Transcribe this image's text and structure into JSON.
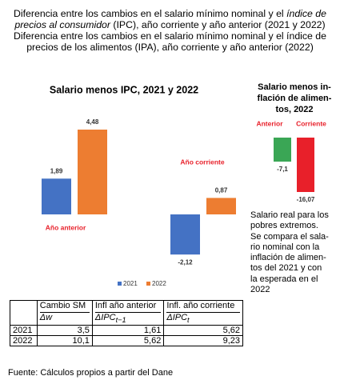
{
  "header": {
    "title_parts": [
      "Diferencia entre los cambios en el salario mínimo nominal y el ",
      "índice de precios al consumidor",
      " (IPC), año corriente y año anterior (2021 y 2022)"
    ],
    "subtitle": "Diferencia entre los cambios en el salario mínimo nominal y  el índice de precios de los alimentos (IPA), año corriente y año anterior (2022)"
  },
  "chart_data": [
    {
      "type": "bar",
      "title": "Salario menos IPC, 2021 y 2022",
      "categories": [
        "Año anterior",
        "Año corriente"
      ],
      "series": [
        {
          "name": "2021",
          "color": "#4472c4",
          "values": [
            1.89,
            -2.12
          ],
          "value_labels": [
            "1,89",
            "-2,12"
          ]
        },
        {
          "name": "2022",
          "color": "#ed7d31",
          "values": [
            4.48,
            0.87
          ],
          "value_labels": [
            "4,48",
            "0,87"
          ]
        }
      ],
      "legend": "bottom"
    },
    {
      "type": "bar",
      "title_lines": [
        "Salario menos in-",
        "flación de alimen-",
        "tos, 2022"
      ],
      "categories": [
        "Anterior",
        "Corriente"
      ],
      "values": [
        -7.1,
        -16.07
      ],
      "value_labels": [
        "-7,1",
        "-16,07"
      ],
      "colors": [
        "#3aa655",
        "#e8202a"
      ]
    }
  ],
  "note": {
    "lines": [
      "Salario real para los",
      "pobres extremos.",
      "Se compara el sala-",
      "rio nominal con la",
      "inflación de alimen-",
      "tos del 2021 y con",
      "la esperada en el",
      "2022"
    ]
  },
  "table": {
    "columns": [
      {
        "title": "Cambio SM",
        "symbol": "Δw"
      },
      {
        "title": "Infl año an­terior",
        "symbol": "ΔIPC",
        "sub": "t−1"
      },
      {
        "title": "Infl. año co­rriente",
        "symbol": "ΔIPC",
        "sub": "t"
      }
    ],
    "rows": [
      [
        "2021",
        "3,5",
        "1,61",
        "5,62"
      ],
      [
        "2022",
        "10,1",
        "5,62",
        "9,23"
      ]
    ]
  },
  "footer": "Fuente: Cálculos propios a partir del Dane"
}
